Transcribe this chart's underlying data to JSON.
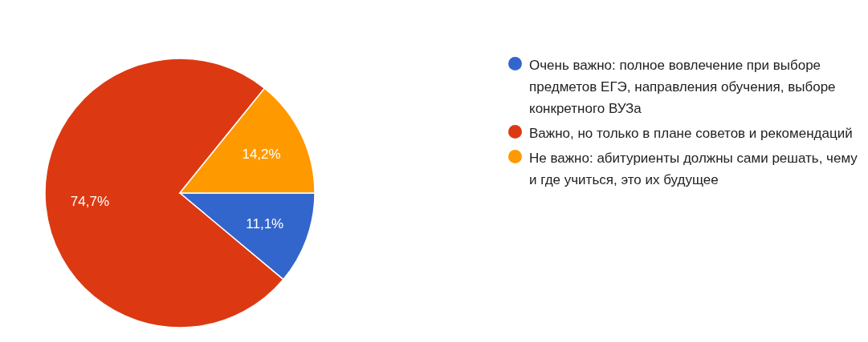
{
  "chart_data": {
    "type": "pie",
    "categories": [
      "Очень важно: полное вовлечение при выборе предметов ЕГЭ, направления обучения, выборе конкретного ВУЗа",
      "Важно, но только в плане советов и рекомендаций",
      "Не важно: абитуриенты должны сами решать, чему и где учиться, это их будущее"
    ],
    "values": [
      11.1,
      74.7,
      14.2
    ],
    "colors": [
      "#3366cc",
      "#dc3912",
      "#ff9900"
    ],
    "value_labels": [
      "11,1%",
      "74,7%",
      "14,2%"
    ],
    "legend": "right"
  }
}
